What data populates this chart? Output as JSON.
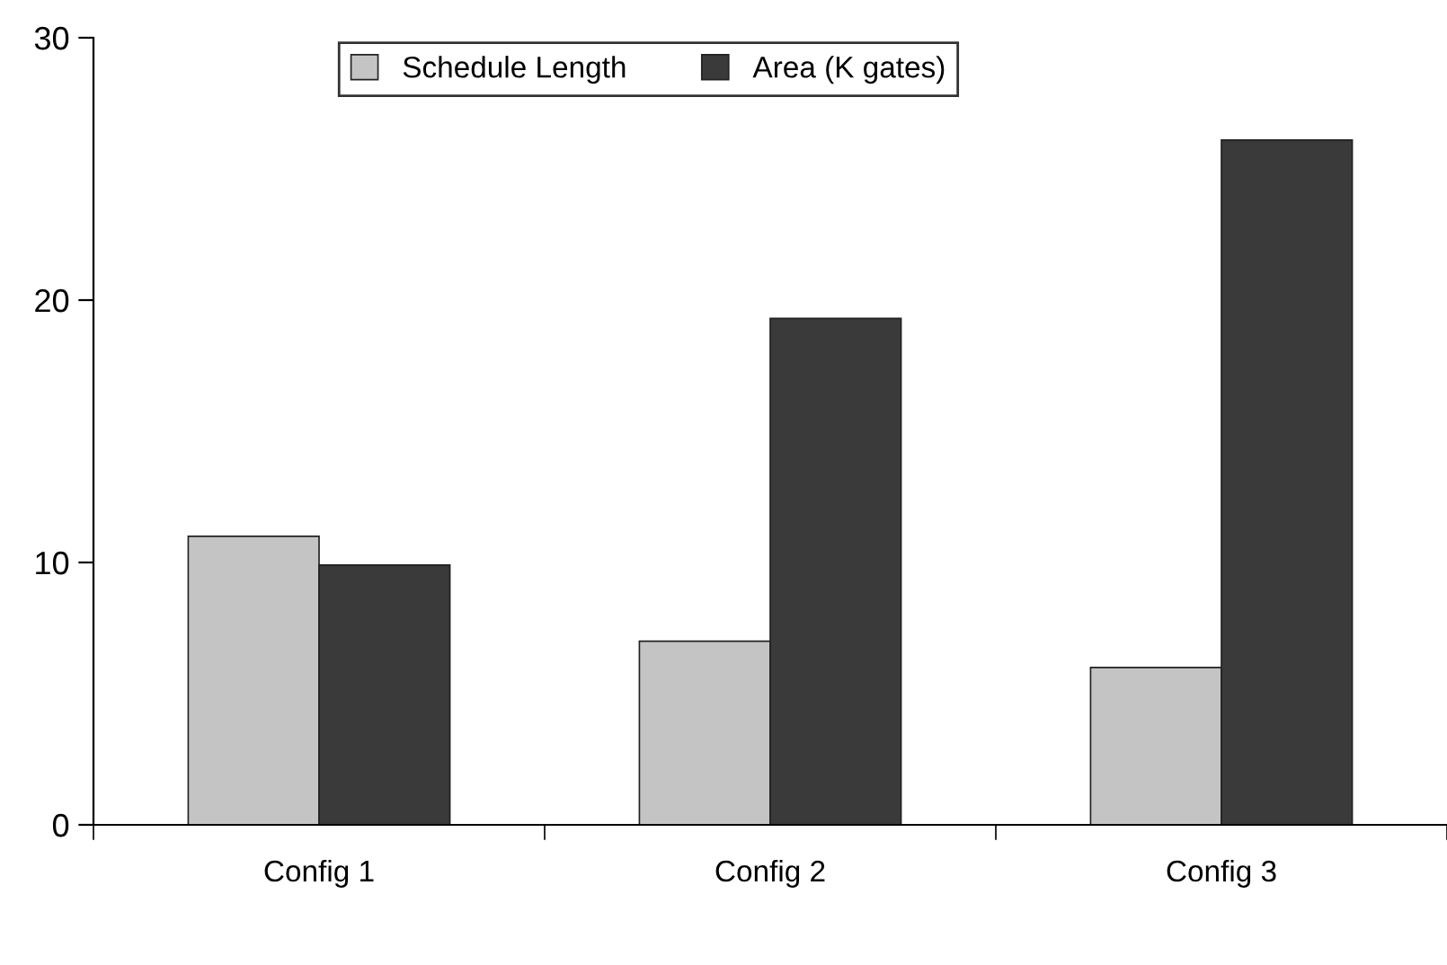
{
  "chart_data": {
    "type": "bar",
    "categories": [
      "Config 1",
      "Config 2",
      "Config 3"
    ],
    "series": [
      {
        "name": "Schedule Length",
        "color": "#c4c4c4",
        "values": [
          11.0,
          7.0,
          6.0
        ]
      },
      {
        "name": "Area (K gates)",
        "color": "#3a3a3a",
        "values": [
          9.9,
          19.3,
          26.1
        ]
      }
    ],
    "ylim": [
      0,
      30
    ],
    "yticks": [
      0,
      10,
      20,
      30
    ],
    "grid": false,
    "legend": "top"
  }
}
